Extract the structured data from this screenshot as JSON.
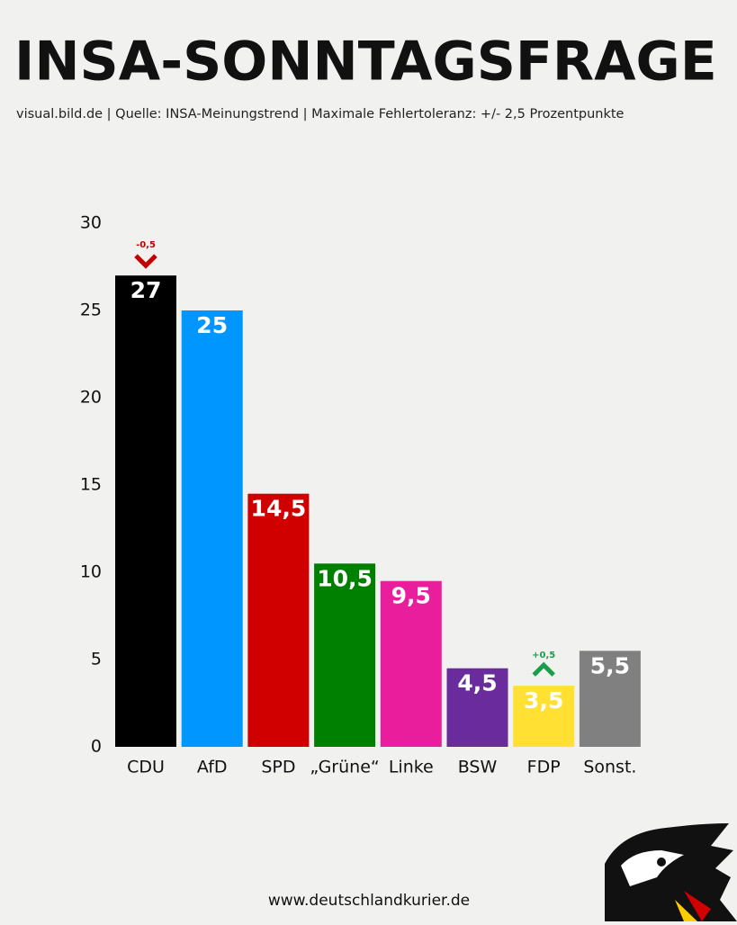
{
  "chart_data": {
    "type": "bar",
    "title": "INSA-SONNTAGSFRAGE",
    "subtitle": "visual.bild.de | Quelle: INSA-Meinungstrend | Maximale Fehlertoleranz: +/- 2,5 Prozentpunkte",
    "footer": "www.deutschlandkurier.de",
    "categories": [
      "CDU",
      "AfD",
      "SPD",
      "„Grüne“",
      "Linke",
      "BSW",
      "FDP",
      "Sonst."
    ],
    "values": [
      27,
      25,
      14.5,
      10.5,
      9.5,
      4.5,
      3.5,
      5.5
    ],
    "value_labels": [
      "27",
      "25",
      "14,5",
      "10,5",
      "9,5",
      "4,5",
      "3,5",
      "5,5"
    ],
    "colors": [
      "#000000",
      "#0096ff",
      "#d00000",
      "#008000",
      "#e91e9c",
      "#6a2c9c",
      "#ffe033",
      "#808080"
    ],
    "changes": [
      -0.5,
      null,
      null,
      null,
      null,
      null,
      0.5,
      null
    ],
    "change_labels": [
      "-0,5",
      null,
      null,
      null,
      null,
      null,
      "+0,5",
      null
    ],
    "change_colors": {
      "down": "#c40000",
      "up": "#1a9e4b"
    },
    "ylim": [
      0,
      30
    ],
    "yticks": [
      0,
      5,
      10,
      15,
      20,
      25,
      30
    ],
    "grid": false
  }
}
